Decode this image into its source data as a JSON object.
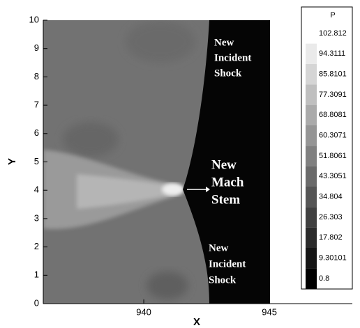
{
  "chart_data": {
    "type": "contour",
    "xlabel": "X",
    "ylabel": "Y",
    "xlim": [
      936,
      948.3
    ],
    "xticks": [
      940,
      945
    ],
    "ylim": [
      0,
      10
    ],
    "yticks": [
      0,
      1,
      2,
      3,
      4,
      5,
      6,
      7,
      8,
      9,
      10
    ],
    "colorbar": {
      "title": "P",
      "levels": [
        102.812,
        94.3111,
        85.8101,
        77.3091,
        68.8081,
        60.3071,
        51.8061,
        43.3051,
        34.804,
        26.303,
        17.802,
        9.30101,
        0.8
      ]
    },
    "annotations": [
      {
        "lines": [
          "New",
          "Incident",
          "Shock"
        ]
      },
      {
        "lines": [
          "New",
          "Mach",
          "Stem"
        ]
      },
      {
        "lines": [
          "New",
          "Incident",
          "Shock"
        ]
      }
    ]
  }
}
